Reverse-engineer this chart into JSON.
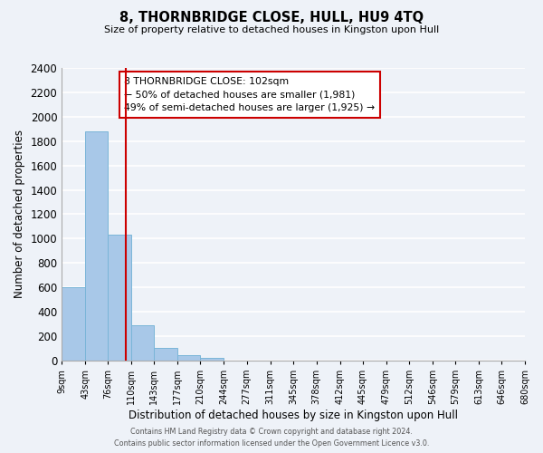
{
  "title": "8, THORNBRIDGE CLOSE, HULL, HU9 4TQ",
  "subtitle": "Size of property relative to detached houses in Kingston upon Hull",
  "xlabel": "Distribution of detached houses by size in Kingston upon Hull",
  "ylabel": "Number of detached properties",
  "bar_color": "#a8c8e8",
  "bar_edge_color": "#7ab5d8",
  "bin_edges": [
    9,
    43,
    76,
    110,
    143,
    177,
    210,
    244,
    277,
    311,
    345,
    378,
    412,
    445,
    479,
    512,
    546,
    579,
    613,
    646,
    680
  ],
  "bar_heights": [
    600,
    1880,
    1030,
    290,
    105,
    45,
    25,
    0,
    0,
    0,
    0,
    0,
    0,
    0,
    0,
    0,
    0,
    0,
    0,
    0
  ],
  "vline_x": 102,
  "vline_color": "#cc0000",
  "ylim": [
    0,
    2400
  ],
  "yticks": [
    0,
    200,
    400,
    600,
    800,
    1000,
    1200,
    1400,
    1600,
    1800,
    2000,
    2200,
    2400
  ],
  "annotation_box_text_lines": [
    "8 THORNBRIDGE CLOSE: 102sqm",
    "← 50% of detached houses are smaller (1,981)",
    "49% of semi-detached houses are larger (1,925) →"
  ],
  "footer_line1": "Contains HM Land Registry data © Crown copyright and database right 2024.",
  "footer_line2": "Contains public sector information licensed under the Open Government Licence v3.0.",
  "background_color": "#eef2f8",
  "grid_color": "#ffffff",
  "tick_label_size": 7.0,
  "title_fontsize": 10.5,
  "subtitle_fontsize": 8.0
}
